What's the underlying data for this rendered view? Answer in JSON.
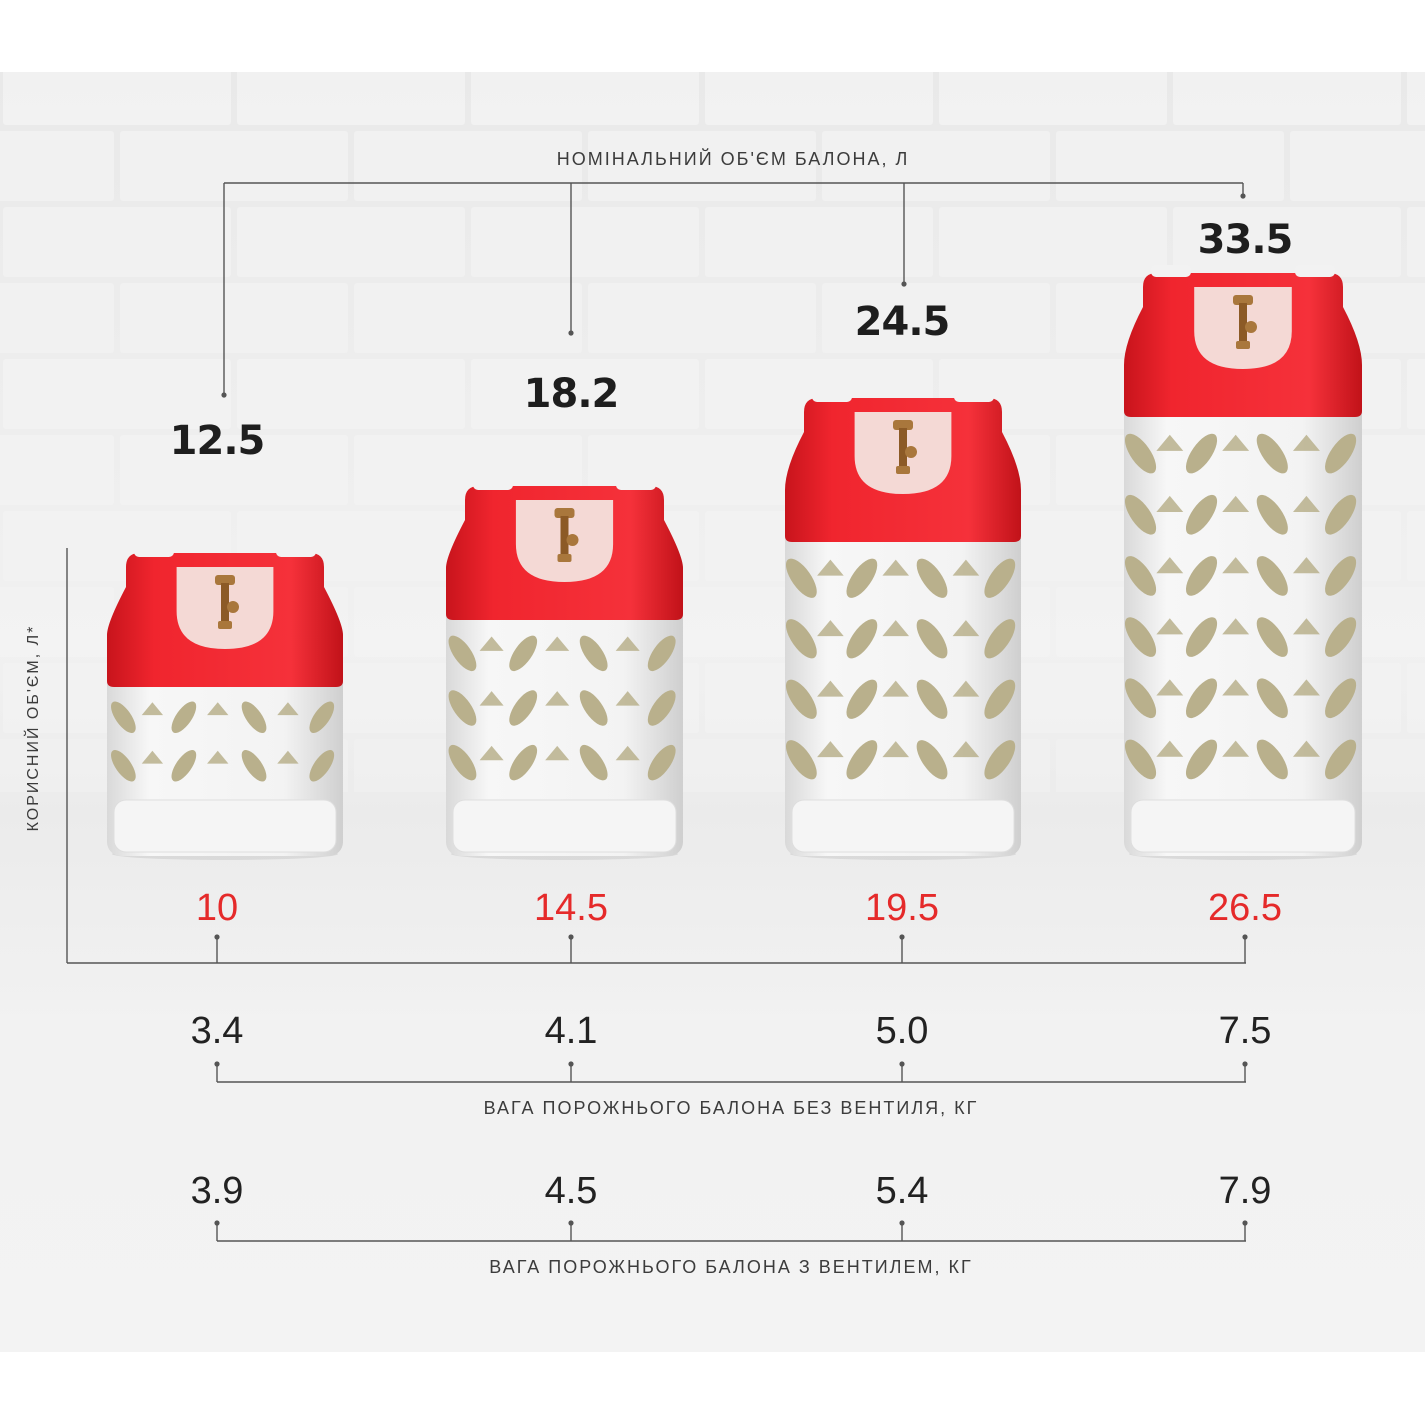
{
  "captions": {
    "nominal_volume": "НОМІНАЛЬНИЙ ОБ'ЄМ БАЛОНА, Л",
    "useful_volume": "КОРИСНИЙ ОБ'ЄМ, Л*",
    "weight_no_valve": "ВАГА ПОРОЖНЬОГО БАЛОНА БЕЗ ВЕНТИЛЯ, КГ",
    "weight_with_valve": "ВАГА ПОРОЖНЬОГО БАЛОНА З ВЕНТИЛЕМ, КГ"
  },
  "cylinders": [
    {
      "nominal": "12.5",
      "useful": "10",
      "weight_no_valve": "3.4",
      "weight_with_valve": "3.9"
    },
    {
      "nominal": "18.2",
      "useful": "14.5",
      "weight_no_valve": "4.1",
      "weight_with_valve": "4.5"
    },
    {
      "nominal": "24.5",
      "useful": "19.5",
      "weight_no_valve": "5.0",
      "weight_with_valve": "5.4"
    },
    {
      "nominal": "33.5",
      "useful": "26.5",
      "weight_no_valve": "7.5",
      "weight_with_valve": "7.9"
    }
  ],
  "colors": {
    "cap_red": "#f0252e",
    "body_white": "#f4f4f4",
    "window_tan": "#b9b08c",
    "useful_value": "#e52a2a",
    "valve_brass": "#a9773c"
  }
}
